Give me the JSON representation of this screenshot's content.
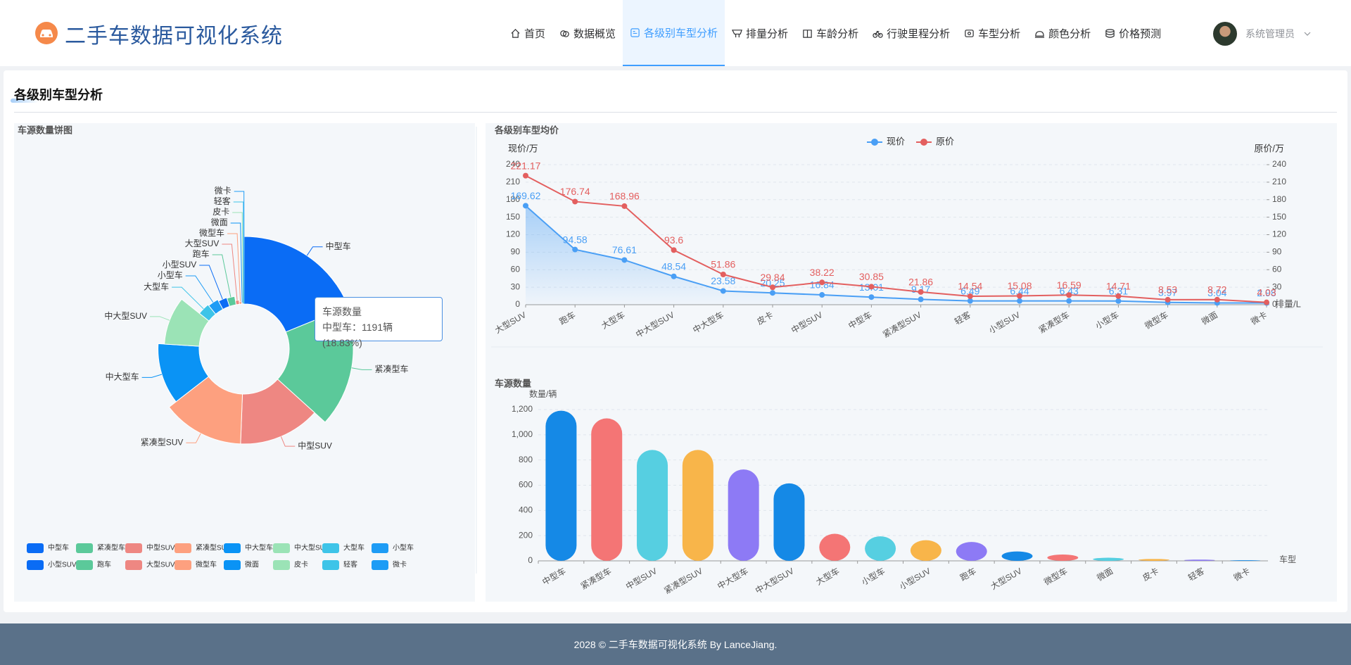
{
  "header": {
    "title": "二手车数据可视化系统",
    "nav": [
      "首页",
      "数据概览",
      "各级别车型分析",
      "排量分析",
      "车龄分析",
      "行驶里程分析",
      "车型分析",
      "颜色分析",
      "价格预测"
    ],
    "user": "系统管理员"
  },
  "section_title": "各级别车型分析",
  "chart_data": [
    {
      "type": "pie",
      "title": "车源数量饼图",
      "categories": [
        "中型车",
        "紧凑型车",
        "中型SUV",
        "紧凑型SUV",
        "中大型车",
        "中大型SUV",
        "大型车",
        "小型车",
        "小型SUV",
        "跑车",
        "大型SUV",
        "微型车",
        "微面",
        "皮卡",
        "轻客",
        "微卡"
      ],
      "values": [
        1191,
        1130,
        880,
        880,
        725,
        615,
        215,
        195,
        164,
        150,
        75,
        50,
        25,
        15,
        10,
        5
      ],
      "colors": [
        "#0a6cf5",
        "#5bc99a",
        "#ee8782",
        "#fda07f",
        "#0a93f5",
        "#9be3b6",
        "#3ec4e8",
        "#1e9cf5",
        "#0a6cf5",
        "#5bc99a",
        "#ee8782",
        "#fda07f",
        "#0a93f5",
        "#9be3b6",
        "#3ec4e8",
        "#1e9cf5"
      ],
      "tooltip": {
        "title": "车源数量",
        "text": "中型车：1191辆 (18.83%)"
      }
    },
    {
      "type": "line",
      "title": "各级别车型均价",
      "categories": [
        "大型SUV",
        "跑车",
        "大型车",
        "中大型SUV",
        "中大型车",
        "皮卡",
        "中型SUV",
        "中型车",
        "紧凑型SUV",
        "轻客",
        "小型SUV",
        "紧凑型车",
        "小型车",
        "微型车",
        "微面",
        "微卡"
      ],
      "series": [
        {
          "name": "现价",
          "color": "#4a9ff5",
          "values": [
            169.62,
            94.58,
            76.61,
            48.54,
            23.58,
            20.25,
            16.84,
            13.01,
            9.17,
            6.49,
            6.44,
            6.43,
            6.31,
            3.97,
            3.04,
            2.98
          ]
        },
        {
          "name": "原价",
          "color": "#e35f5f",
          "axis": "y2",
          "values": [
            221.17,
            176.74,
            168.96,
            93.6,
            51.86,
            29.84,
            38.22,
            30.85,
            21.86,
            14.54,
            15.08,
            16.59,
            14.71,
            8.53,
            8.72,
            4.03
          ]
        }
      ],
      "ylabel": "现价/万",
      "y2label": "原价/万",
      "xlabel": "排量/L",
      "ylim": [
        0,
        240
      ],
      "yticks": [
        0,
        30,
        60,
        90,
        120,
        150,
        180,
        210,
        240
      ],
      "y2lim": [
        0,
        240
      ],
      "y2ticks": [
        0,
        30,
        60,
        90,
        120,
        150,
        180,
        210,
        240
      ],
      "grid": true
    },
    {
      "type": "bar",
      "title": "车源数量",
      "categories": [
        "中型车",
        "紧凑型车",
        "中型SUV",
        "紧凑型SUV",
        "中大型车",
        "中大型SUV",
        "大型车",
        "小型车",
        "小型SUV",
        "跑车",
        "大型SUV",
        "微型车",
        "微面",
        "皮卡",
        "轻客",
        "微卡"
      ],
      "values": [
        1191,
        1130,
        880,
        880,
        725,
        615,
        215,
        195,
        164,
        150,
        75,
        50,
        25,
        15,
        10,
        5
      ],
      "colors": [
        "#1589e6",
        "#f47575",
        "#56cfe1",
        "#f8b54a",
        "#8d7af5",
        "#1589e6",
        "#f47575",
        "#56cfe1",
        "#f8b54a",
        "#8d7af5",
        "#1589e6",
        "#f47575",
        "#56cfe1",
        "#f8b54a",
        "#8d7af5",
        "#1589e6"
      ],
      "ylabel": "数量/辆",
      "xlabel": "车型",
      "ylim": [
        0,
        1200
      ],
      "yticks": [
        0,
        200,
        400,
        600,
        800,
        {
          "value": 1000,
          "label": "1,000"
        },
        {
          "value": 1200,
          "label": "1,200"
        }
      ],
      "grid": true
    }
  ],
  "footer": "2028 © 二手车数据可视化系统 By LanceJiang."
}
